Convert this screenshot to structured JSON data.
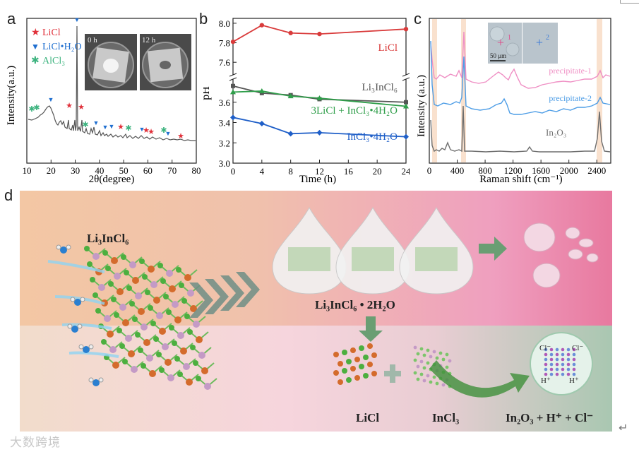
{
  "panel_labels": {
    "a": "a",
    "b": "b",
    "c": "c",
    "d": "d"
  },
  "panel_a": {
    "ylabel": "Intensity(a.u.)",
    "xlabel": "2θ(degree)",
    "xticks": [
      "10",
      "20",
      "30",
      "40",
      "50",
      "60",
      "70",
      "80"
    ],
    "legend": [
      {
        "symbol": "★",
        "text": "LiCl",
        "color": "#e0303a"
      },
      {
        "symbol": "▼",
        "text": "LiCl•H₂O",
        "color": "#1f6fd0"
      },
      {
        "symbol": "✱",
        "text": "AlCl₃",
        "color": "#3db37f"
      }
    ],
    "inset_labels": [
      "0 h",
      "12 h"
    ]
  },
  "chart_data": {
    "type": "line",
    "title": "",
    "xlabel": "Time (h)",
    "ylabel": "pH",
    "x": [
      0,
      4,
      8,
      12,
      24
    ],
    "xticks": [
      "0",
      "4",
      "8",
      "12",
      "16",
      "20",
      "24"
    ],
    "yticks_upper": [
      "8.0",
      "7.8",
      "7.6"
    ],
    "yticks_lower": [
      "3.6",
      "3.4",
      "3.2",
      "3.0"
    ],
    "ylim_upper": [
      7.5,
      8.05
    ],
    "ylim_lower": [
      3.0,
      3.8
    ],
    "series": [
      {
        "name": "LiCl",
        "color": "#d93b3b",
        "marker": "circle",
        "values": [
          7.81,
          7.98,
          7.9,
          7.89,
          7.94
        ]
      },
      {
        "name": "Li₃InCl₆",
        "color": "#555555",
        "marker": "square",
        "values": [
          3.76,
          3.69,
          3.67,
          3.63,
          3.6
        ]
      },
      {
        "name": "3LiCl + InCl₃•4H₂O",
        "color": "#2f9e4a",
        "marker": "triangle",
        "values": [
          3.7,
          3.71,
          3.66,
          3.64,
          3.56
        ]
      },
      {
        "name": "InCl₃•4H₂O",
        "color": "#1f5fc8",
        "marker": "diamond",
        "values": [
          3.45,
          3.39,
          3.29,
          3.3,
          3.26
        ]
      }
    ]
  },
  "panel_c": {
    "ylabel": "Intensity (a.u.)",
    "xlabel": "Raman shift (cm⁻¹)",
    "xticks": [
      "0",
      "400",
      "800",
      "1200",
      "1600",
      "2000",
      "2400"
    ],
    "traces": [
      {
        "name": "precipitate-1",
        "color": "#ef8fc4"
      },
      {
        "name": "precipitate-2",
        "color": "#4d9de6"
      },
      {
        "name": "In₂O₃",
        "color": "#6e6e6e"
      }
    ],
    "inset_scale": "50 μm",
    "inset_markers": [
      "1",
      "2"
    ]
  },
  "panel_d": {
    "crystal_label": "Li₃InCl₆",
    "hydrate_label": "Li₃InCl₆ • 2H₂O",
    "licl_label": "LiCl",
    "incl3_label": "InCl₃",
    "products_label": "In₂O₃ + H⁺ + Cl⁻",
    "plus_sign": "+",
    "bubble_ions": [
      "Cl⁻",
      "Cl⁻",
      "H⁺",
      "H⁺"
    ]
  },
  "watermark": "大数跨境",
  "return_mark": "↵"
}
